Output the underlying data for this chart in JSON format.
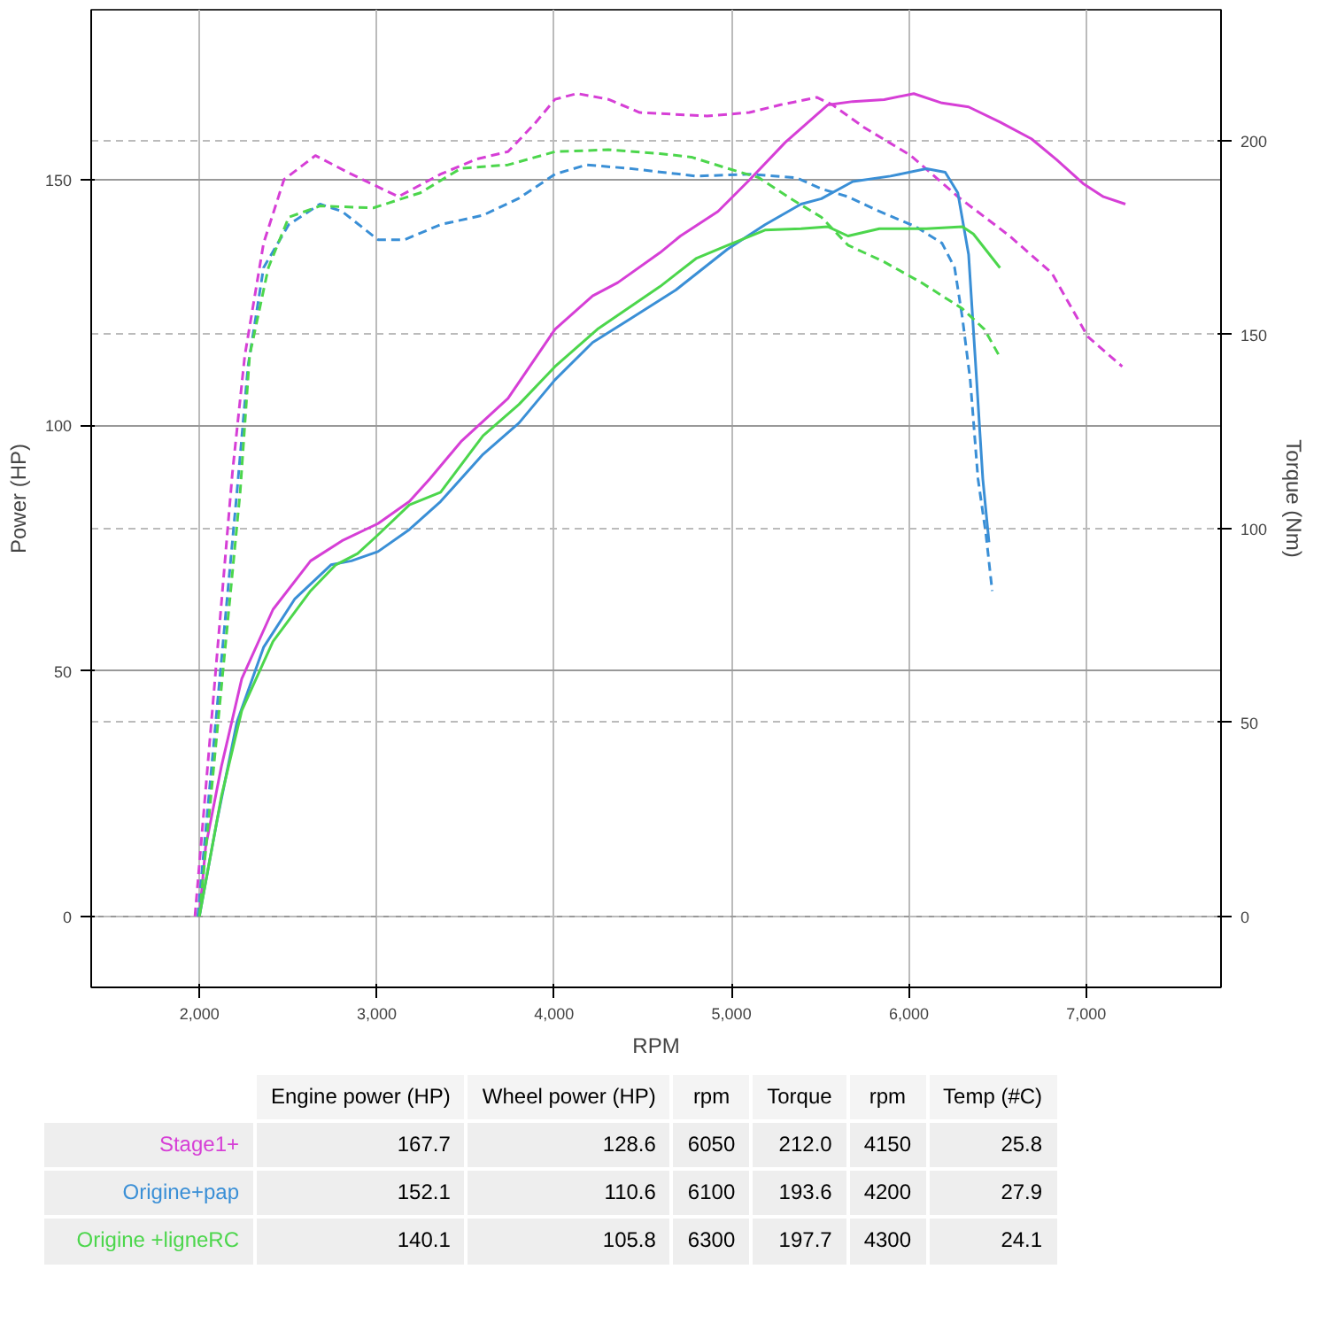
{
  "chart_data": {
    "type": "line",
    "xlabel": "RPM",
    "ylabel": "Power (HP)",
    "y2label": "Torque (Nm)",
    "xlim": [
      1390,
      7760
    ],
    "ylim": [
      -14.5,
      184.7
    ],
    "y2lim": [
      -18.3,
      233.8
    ],
    "xticks": [
      {
        "value": 2000,
        "label": "2,000"
      },
      {
        "value": 3000,
        "label": "3,000"
      },
      {
        "value": 4000,
        "label": "4,000"
      },
      {
        "value": 5000,
        "label": "5,000"
      },
      {
        "value": 6000,
        "label": "6,000"
      },
      {
        "value": 7000,
        "label": "7,000"
      }
    ],
    "yticks": [
      0,
      50,
      100,
      150
    ],
    "y2ticks": [
      0,
      50,
      100,
      150,
      200
    ],
    "grid": true,
    "series": [
      {
        "name": "Stage1+",
        "color": "#d63fd6",
        "line_style": "solid",
        "x": [
          2000,
          2035,
          2124,
          2239,
          2415,
          2627,
          2804,
          3007,
          3184,
          3299,
          3475,
          3740,
          4005,
          4217,
          4359,
          4597,
          4712,
          4924,
          5101,
          5304,
          5542,
          5684,
          5861,
          6028,
          6187,
          6337,
          6514,
          6691,
          6832,
          6982,
          7097,
          7221
        ],
        "values": [
          0,
          14.1,
          30.5,
          48.4,
          62.5,
          72.4,
          76.5,
          80.0,
          84.5,
          89.1,
          96.7,
          105.5,
          119.6,
          126.4,
          129.1,
          135.2,
          138.6,
          143.6,
          150.0,
          157.7,
          165.3,
          166.0,
          166.4,
          167.6,
          165.7,
          164.9,
          161.8,
          158.4,
          154.2,
          149.3,
          146.6,
          145.1
        ]
      },
      {
        "color": "#d63fd6",
        "line_style": "dashed",
        "axis": "y2",
        "x": [
          1975,
          2186,
          2256,
          2362,
          2477,
          2654,
          2857,
          3122,
          3360,
          3564,
          3740,
          3890,
          4005,
          4129,
          4306,
          4482,
          4862,
          5101,
          5277,
          5481,
          5569,
          5746,
          6011,
          6276,
          6567,
          6806,
          7009,
          7203
        ],
        "values": [
          0,
          114.3,
          144.6,
          173.6,
          190.0,
          196.2,
          191.4,
          185.6,
          191.4,
          195.3,
          197.2,
          204.4,
          210.7,
          212.2,
          210.7,
          207.3,
          206.4,
          207.3,
          209.3,
          211.2,
          209.3,
          203.5,
          196.2,
          185.6,
          175.5,
          165.9,
          149.5,
          141.8
        ]
      },
      {
        "name": "Origine+pap",
        "color": "#3a8fd6",
        "line_style": "solid",
        "x": [
          2000,
          2097,
          2212,
          2362,
          2539,
          2742,
          2857,
          3007,
          3184,
          3360,
          3599,
          3802,
          4005,
          4217,
          4420,
          4686,
          4977,
          5189,
          5392,
          5507,
          5684,
          5896,
          6099,
          6205,
          6276,
          6337,
          6382,
          6417,
          6452
        ],
        "values": [
          0,
          19.0,
          39.6,
          54.8,
          64.7,
          71.6,
          72.4,
          74.3,
          78.8,
          84.5,
          94.1,
          100.5,
          109.3,
          116.9,
          121.5,
          127.6,
          135.9,
          140.9,
          145.1,
          146.2,
          149.7,
          150.8,
          152.3,
          151.6,
          147.4,
          134.8,
          109.3,
          89.1,
          76.2
        ]
      },
      {
        "color": "#3a8fd6",
        "line_style": "dashed",
        "axis": "y2",
        "x": [
          1991,
          2212,
          2274,
          2362,
          2504,
          2680,
          2804,
          3007,
          3157,
          3360,
          3599,
          3802,
          4005,
          4182,
          4420,
          4800,
          5101,
          5366,
          5507,
          5657,
          5834,
          6037,
          6187,
          6258,
          6302,
          6346,
          6390,
          6435,
          6470
        ],
        "values": [
          0,
          109.5,
          141.8,
          167.3,
          178.4,
          183.7,
          181.8,
          174.5,
          174.5,
          178.4,
          180.8,
          185.2,
          191.4,
          193.8,
          192.9,
          190.9,
          191.4,
          190.5,
          187.6,
          185.6,
          181.8,
          177.9,
          173.6,
          167.3,
          154.3,
          138.4,
          112.8,
          98.4,
          83.9
        ]
      },
      {
        "name": "Origine +ligneRC",
        "color": "#4cd64c",
        "line_style": "solid",
        "x": [
          2000,
          2124,
          2239,
          2415,
          2627,
          2769,
          2892,
          3007,
          3184,
          3360,
          3599,
          3802,
          4005,
          4244,
          4597,
          4800,
          4977,
          5189,
          5392,
          5542,
          5657,
          5834,
          6099,
          6302,
          6364,
          6514
        ],
        "values": [
          0,
          24.4,
          41.9,
          56.0,
          66.3,
          71.6,
          73.9,
          77.7,
          83.8,
          86.4,
          97.9,
          104.3,
          112.0,
          119.6,
          128.3,
          134.0,
          136.7,
          139.8,
          140.1,
          140.5,
          138.6,
          140.1,
          140.1,
          140.5,
          139.0,
          132.1
        ]
      },
      {
        "color": "#4cd64c",
        "line_style": "dashed",
        "axis": "y2",
        "x": [
          2000,
          2230,
          2283,
          2389,
          2504,
          2680,
          2981,
          3246,
          3475,
          3740,
          4005,
          4306,
          4597,
          4774,
          4977,
          5154,
          5330,
          5507,
          5657,
          5860,
          6072,
          6302,
          6426,
          6514
        ],
        "values": [
          0,
          109.5,
          144.6,
          167.3,
          180.3,
          183.2,
          182.7,
          186.6,
          192.9,
          193.8,
          197.2,
          197.7,
          196.7,
          195.8,
          192.9,
          190.5,
          185.2,
          180.3,
          173.1,
          168.8,
          163.4,
          156.7,
          151.4,
          144.2
        ]
      }
    ],
    "annotations": [
      "Engine power (HP)",
      "Wheel power (HP)",
      "rpm",
      "Torque",
      "rpm",
      "Temp (#C)",
      "167.7",
      "128.6",
      "6050",
      "212.0",
      "4150",
      "25.8",
      "152.1",
      "110.6",
      "6100",
      "193.6",
      "4200",
      "27.9",
      "140.1",
      "105.8",
      "6300",
      "197.7",
      "4300",
      "24.1"
    ]
  }
}
